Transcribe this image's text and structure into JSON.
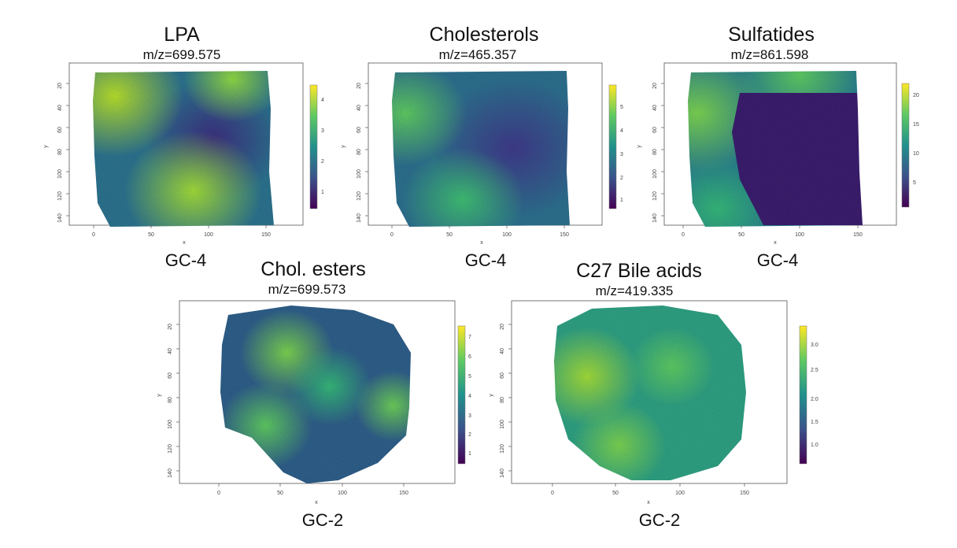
{
  "panels": [
    {
      "title": "LPA",
      "mz": "m/z=699.575",
      "sample": "GC-4",
      "x_ticks": [
        "0",
        "50",
        "100",
        "150"
      ],
      "y_ticks": [
        "20",
        "40",
        "60",
        "80",
        "100",
        "120",
        "140"
      ],
      "xlabel": "x",
      "ylabel": "y",
      "colorbar_ticks": [
        "1",
        "2",
        "3",
        "4"
      ]
    },
    {
      "title": "Cholesterols",
      "mz": "m/z=465.357",
      "sample": "GC-4",
      "x_ticks": [
        "0",
        "50",
        "100",
        "150"
      ],
      "y_ticks": [
        "20",
        "40",
        "60",
        "80",
        "100",
        "120",
        "140"
      ],
      "xlabel": "x",
      "ylabel": "y",
      "colorbar_ticks": [
        "1",
        "2",
        "3",
        "4",
        "5"
      ]
    },
    {
      "title": "Sulfatides",
      "mz": "m/z=861.598",
      "sample": "GC-4",
      "x_ticks": [
        "0",
        "50",
        "100",
        "150"
      ],
      "y_ticks": [
        "20",
        "40",
        "60",
        "80",
        "100",
        "120",
        "140"
      ],
      "xlabel": "x",
      "ylabel": "y",
      "colorbar_ticks": [
        "5",
        "10",
        "15",
        "20"
      ]
    },
    {
      "title": "Chol. esters",
      "mz": "m/z=699.573",
      "sample": "GC-2",
      "x_ticks": [
        "0",
        "50",
        "100",
        "150"
      ],
      "y_ticks": [
        "20",
        "40",
        "60",
        "80",
        "100",
        "120",
        "140"
      ],
      "xlabel": "x",
      "ylabel": "y",
      "colorbar_ticks": [
        "1",
        "2",
        "3",
        "4",
        "5",
        "6",
        "7"
      ]
    },
    {
      "title": "C27 Bile acids",
      "mz": "m/z=419.335",
      "sample": "GC-2",
      "x_ticks": [
        "0",
        "50",
        "100",
        "150"
      ],
      "y_ticks": [
        "20",
        "40",
        "60",
        "80",
        "100",
        "120",
        "140"
      ],
      "xlabel": "x",
      "ylabel": "y",
      "colorbar_ticks": [
        "1.0",
        "1.5",
        "2.0",
        "2.5",
        "3.0"
      ]
    }
  ],
  "colors": {
    "viridis_dark": "#440154",
    "viridis_mid": "#21918c",
    "viridis_light": "#fde725"
  }
}
